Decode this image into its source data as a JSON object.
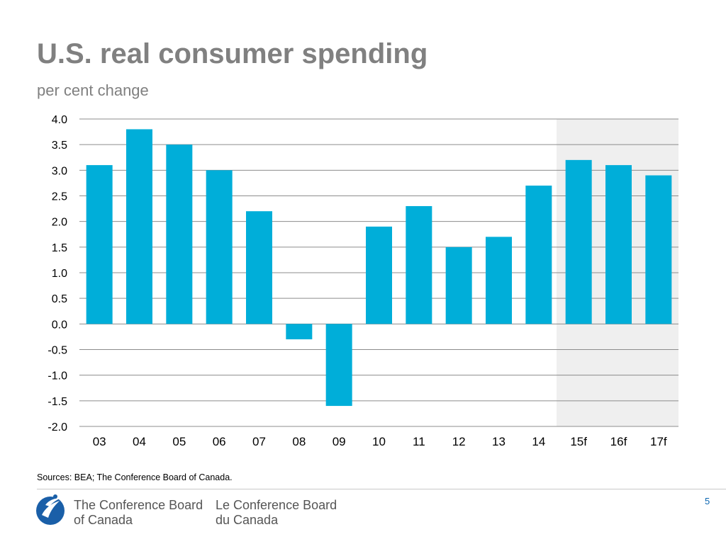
{
  "slide": {
    "title": "U.S. real consumer spending",
    "subtitle": "per cent change",
    "source": "Sources: BEA; The Conference Board of Canada.",
    "page_number": "5"
  },
  "footer": {
    "org_en_line1": "The Conference Board",
    "org_en_line2": "of Canada",
    "org_fr_line1": "Le Conference Board",
    "org_fr_line2": "du Canada",
    "logo_icon": "conference-board-logo-icon"
  },
  "colors": {
    "bar": "#00aed9",
    "forecast_shade": "#efefef",
    "gridline": "#8c8c8c",
    "title": "#808080"
  },
  "chart_data": {
    "type": "bar",
    "title": "U.S. real consumer spending",
    "ylabel": "per cent change",
    "xlabel": "",
    "categories": [
      "03",
      "04",
      "05",
      "06",
      "07",
      "08",
      "09",
      "10",
      "11",
      "12",
      "13",
      "14",
      "15f",
      "16f",
      "17f"
    ],
    "values": [
      3.1,
      3.8,
      3.5,
      3.0,
      2.2,
      -0.3,
      -1.6,
      1.9,
      2.3,
      1.5,
      1.7,
      2.7,
      3.2,
      3.1,
      2.9
    ],
    "ylim": [
      -2.0,
      4.0
    ],
    "yticks": [
      4.0,
      3.5,
      3.0,
      2.5,
      2.0,
      1.5,
      1.0,
      0.5,
      0.0,
      -0.5,
      -1.0,
      -1.5,
      -2.0
    ],
    "ytick_labels": [
      "4.0",
      "3.5",
      "3.0",
      "2.5",
      "2.0",
      "1.5",
      "1.0",
      "0.5",
      "0.0",
      "-0.5",
      "-1.0",
      "-1.5",
      "-2.0"
    ],
    "grid": true,
    "forecast_categories": [
      "15f",
      "16f",
      "17f"
    ]
  }
}
